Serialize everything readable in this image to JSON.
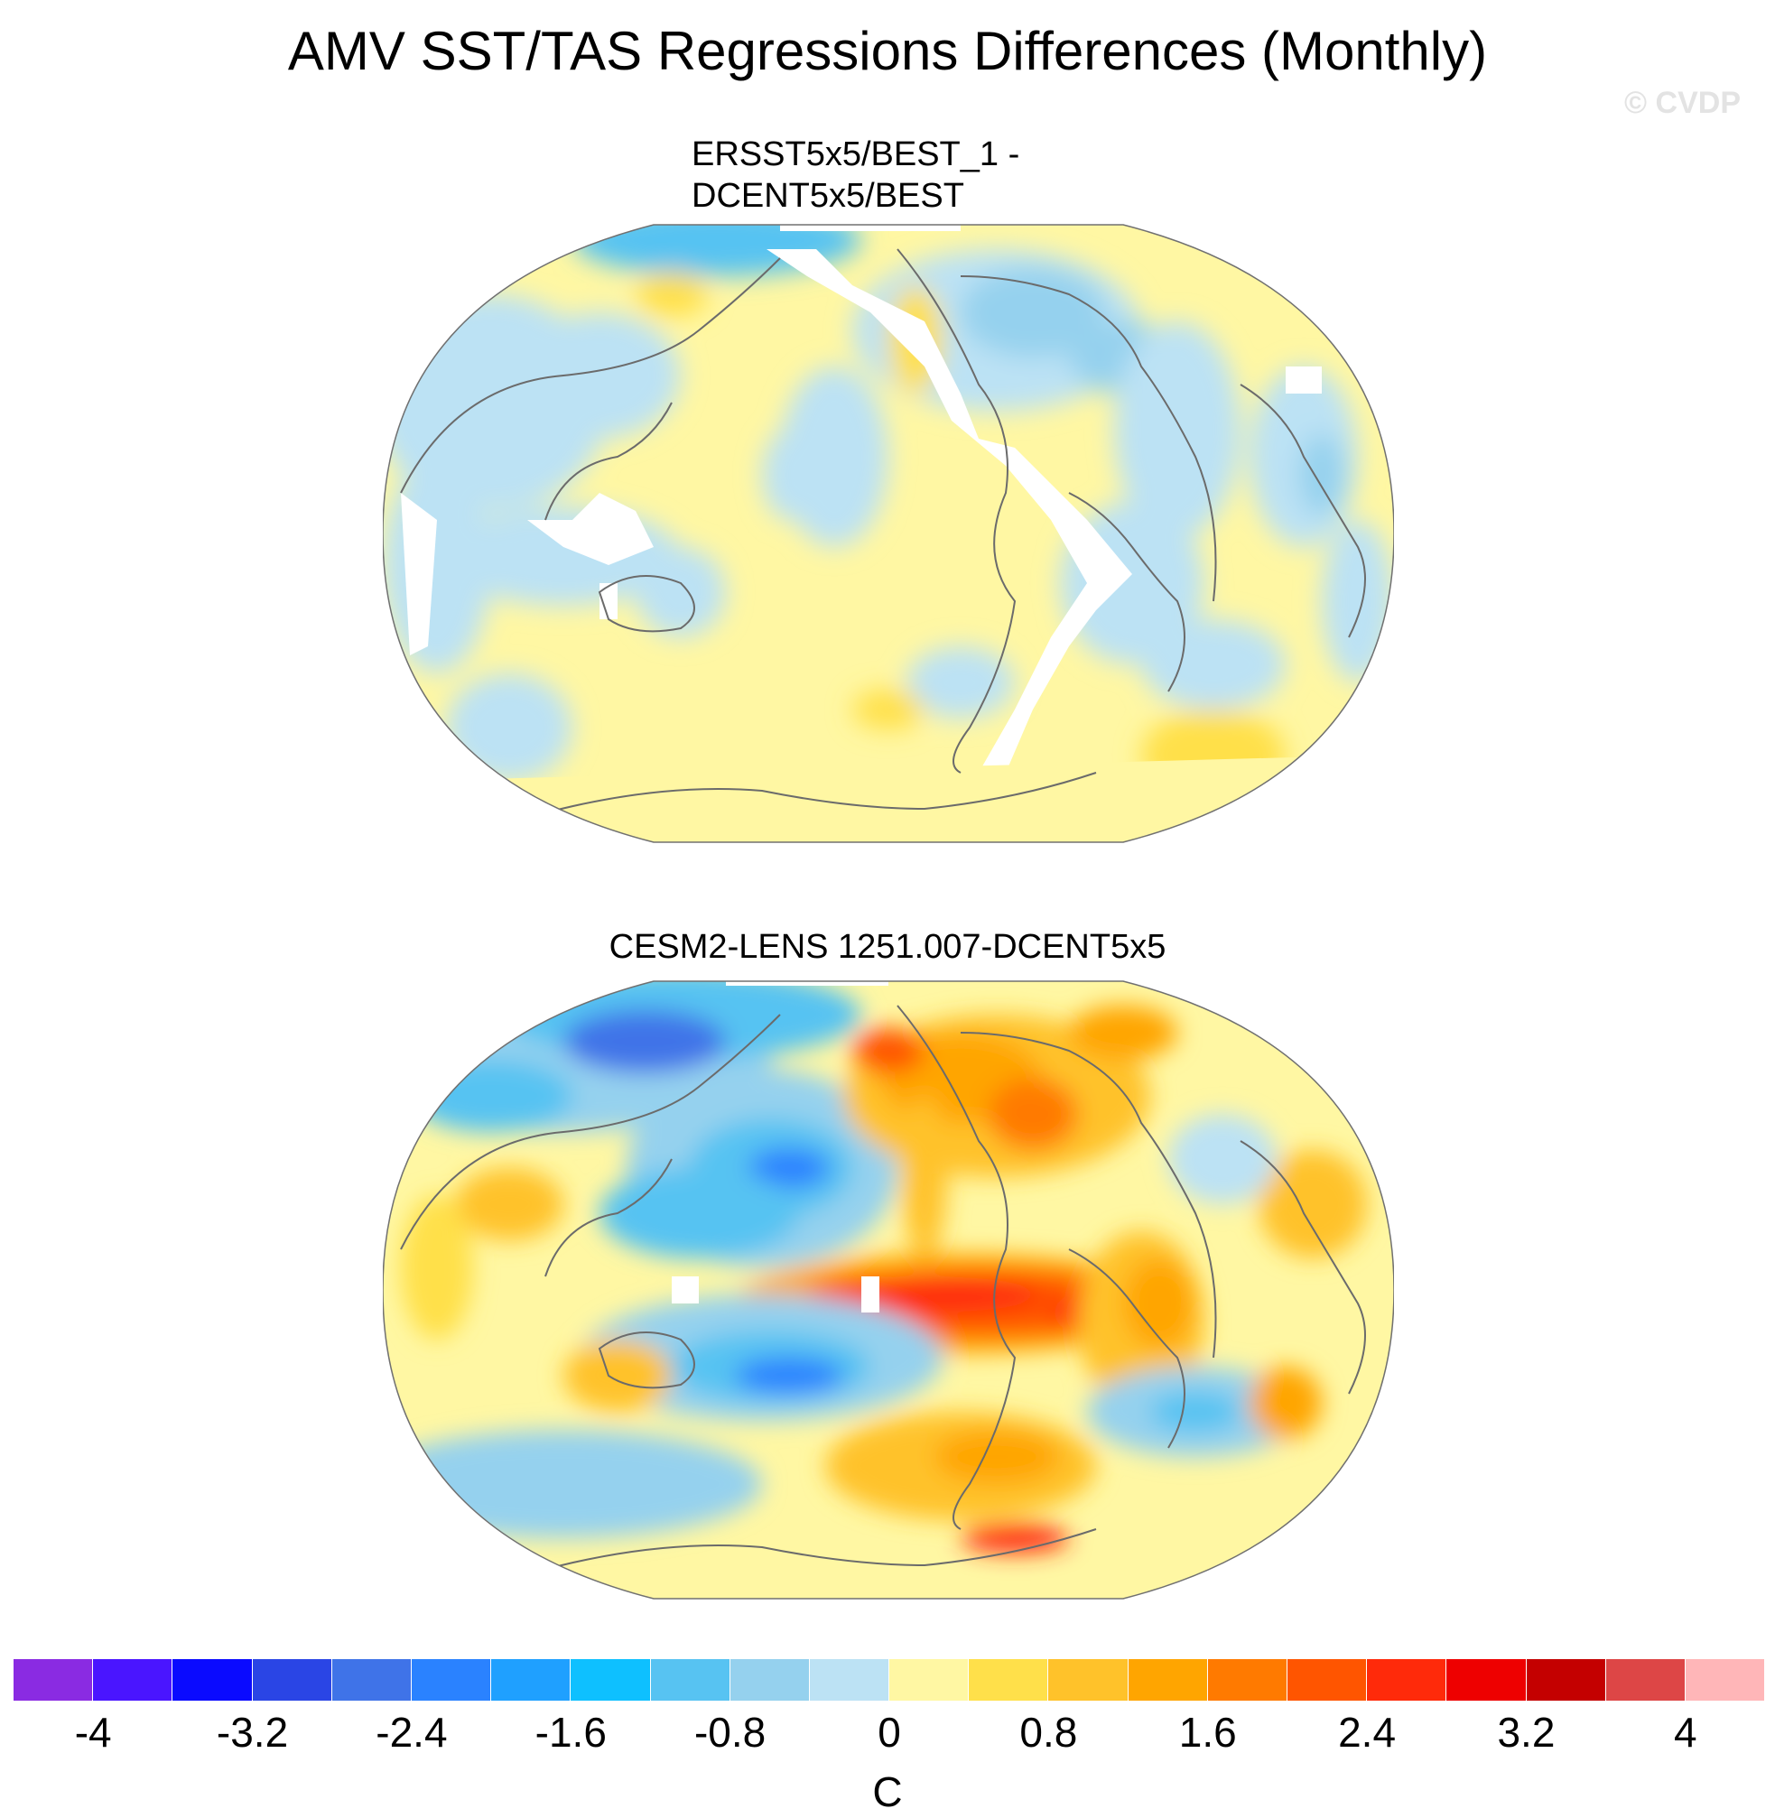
{
  "title": "AMV SST/TAS Regressions Differences (Monthly)",
  "watermark": "© CVDP",
  "panels": [
    {
      "title_line1": "ERSST5x5/BEST_1 -",
      "title_line2": "DCENT5x5/BEST"
    },
    {
      "title": "CESM2-LENS 1251.007-DCENT5x5"
    }
  ],
  "colorbar": {
    "colors": [
      "#8a2be2",
      "#4a15ff",
      "#0a0aff",
      "#2a45e5",
      "#3f73e8",
      "#2a82ff",
      "#1fa0ff",
      "#0ec0ff",
      "#57c3f2",
      "#95d1ee",
      "#bce2f4",
      "#fff7a3",
      "#ffe04a",
      "#ffc22a",
      "#ffa500",
      "#ff7a00",
      "#ff5500",
      "#ff2a0a",
      "#ee0000",
      "#c40000",
      "#dd4646",
      "#ffb6b8"
    ],
    "tick_labels": [
      "-4",
      "-3.2",
      "-2.4",
      "-1.6",
      "-0.8",
      "0",
      "0.8",
      "1.6",
      "2.4",
      "3.2",
      "4"
    ],
    "unit": "C"
  }
}
